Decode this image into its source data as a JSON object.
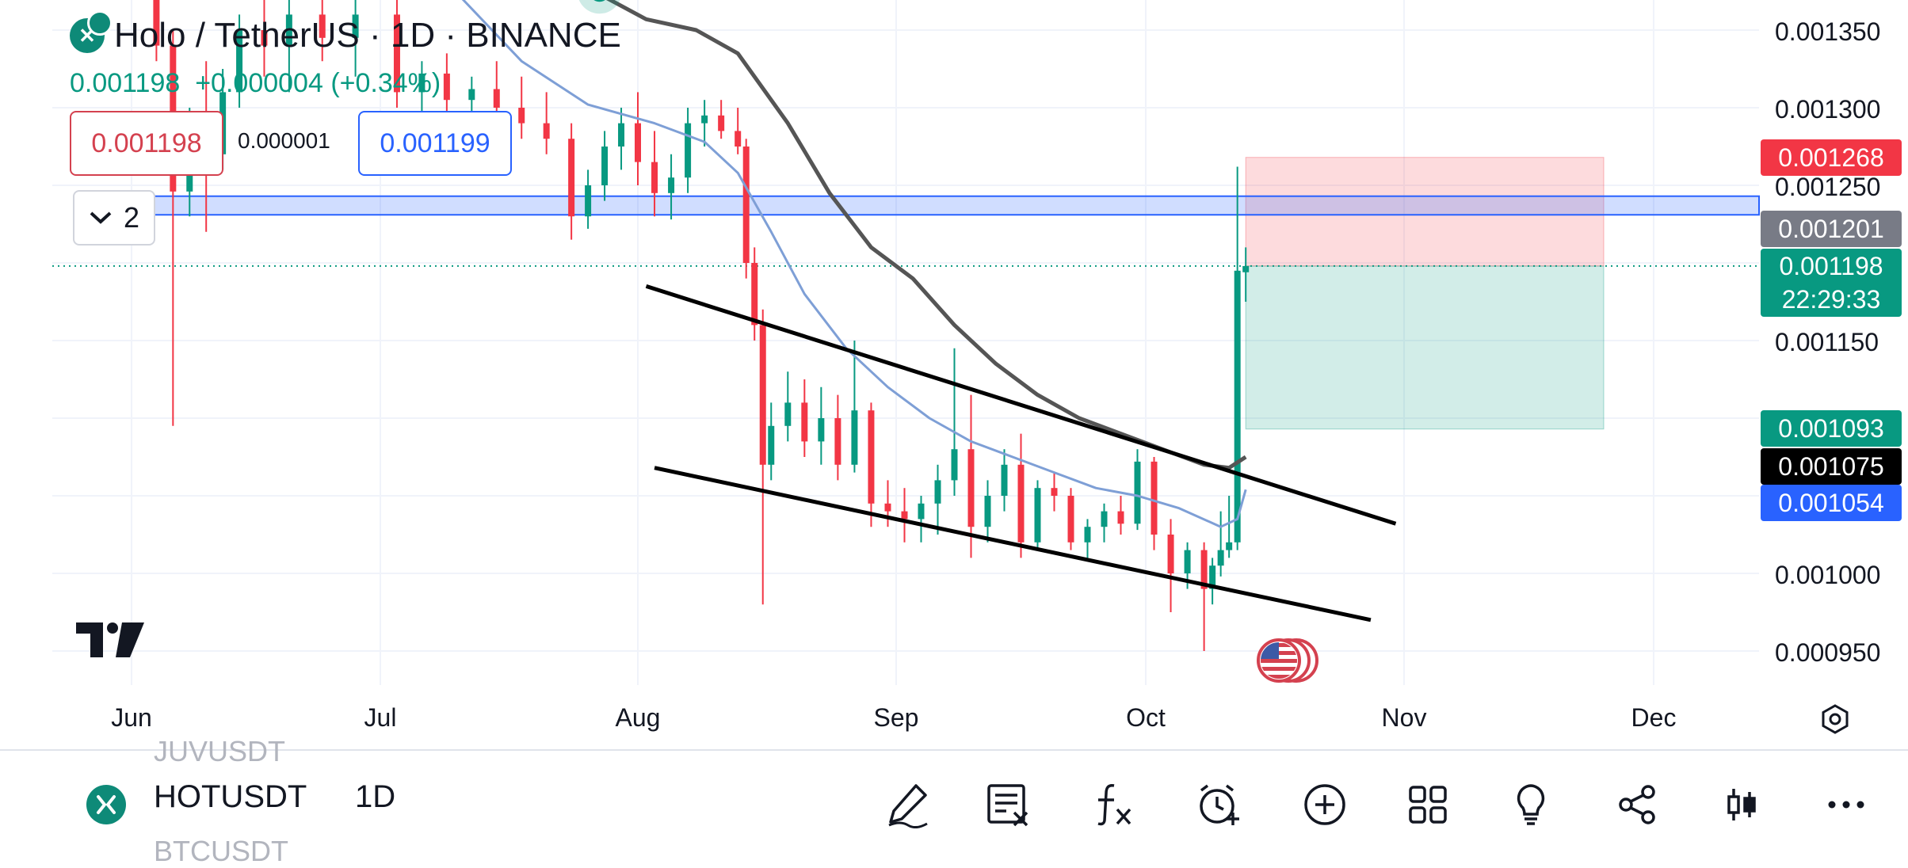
{
  "header": {
    "title": "Holo / TetherUS · 1D · BINANCE",
    "last_price": "0.001198",
    "change": "+0.000004 (+0.34%)",
    "bid": "0.001198",
    "spread": "0.000001",
    "ask": "0.001199",
    "indicator_count": "2"
  },
  "price_axis": {
    "ticks": [
      "0.001350",
      "0.001300",
      "0.001250",
      "0.001150",
      "0.001000",
      "0.000950"
    ],
    "tags": {
      "stop_loss": {
        "value": "0.001268",
        "color": "#f23645"
      },
      "horizontal_level": {
        "value": "0.001201",
        "color": "#787b86"
      },
      "last_price": {
        "value": "0.001198",
        "countdown": "22:29:33",
        "color": "#089981"
      },
      "take_profit": {
        "value": "0.001093",
        "color": "#089981"
      },
      "ma_slow": {
        "value": "0.001075",
        "color": "#000000"
      },
      "ma_fast": {
        "value": "0.001054",
        "color": "#2962ff"
      }
    }
  },
  "time_axis": {
    "labels": [
      "Jun",
      "Jul",
      "Aug",
      "Sep",
      "Oct",
      "Nov",
      "Dec"
    ]
  },
  "chart_data": {
    "type": "candlestick",
    "symbol": "HOTUSDT",
    "interval": "1D",
    "y_range": [
      0.00092,
      0.00136
    ],
    "last_price": 0.001198,
    "horizontal_zone": [
      0.001231,
      0.001243
    ],
    "long_position": {
      "entry": 0.001198,
      "stop_loss": 0.001268,
      "take_profit": 0.001093
    },
    "channel_upper": {
      "from": {
        "x": "Aug 2",
        "y": 0.001185
      },
      "to": {
        "x": "Oct 31",
        "y": 0.001032
      }
    },
    "channel_lower": {
      "from": {
        "x": "Aug 3",
        "y": 0.001068
      },
      "to": {
        "x": "Oct 28",
        "y": 0.00097
      }
    },
    "candles": [
      {
        "x": "Jun 4",
        "open": 0.001375,
        "high": 0.00139,
        "low": 0.00133,
        "close": 0.00134
      },
      {
        "x": "Jun 6",
        "open": 0.00134,
        "high": 0.00135,
        "low": 0.001095,
        "close": 0.001246
      },
      {
        "x": "Jun 8",
        "open": 0.001246,
        "high": 0.0013,
        "low": 0.00123,
        "close": 0.00129
      },
      {
        "x": "Jun 10",
        "open": 0.00129,
        "high": 0.00133,
        "low": 0.00122,
        "close": 0.00127
      },
      {
        "x": "Jun 12",
        "open": 0.00127,
        "high": 0.001325,
        "low": 0.00126,
        "close": 0.00131
      },
      {
        "x": "Jun 14",
        "open": 0.00131,
        "high": 0.00136,
        "low": 0.0013,
        "close": 0.00135
      },
      {
        "x": "Jun 17",
        "open": 0.00135,
        "high": 0.00138,
        "low": 0.00132,
        "close": 0.00134
      },
      {
        "x": "Jun 20",
        "open": 0.00134,
        "high": 0.00137,
        "low": 0.00131,
        "close": 0.00136
      },
      {
        "x": "Jun 24",
        "open": 0.00136,
        "high": 0.00138,
        "low": 0.00133,
        "close": 0.001345
      },
      {
        "x": "Jun 28",
        "open": 0.001345,
        "high": 0.001375,
        "low": 0.00132,
        "close": 0.00136
      },
      {
        "x": "Jul 3",
        "open": 0.00136,
        "high": 0.00138,
        "low": 0.0013,
        "close": 0.00131
      },
      {
        "x": "Jul 6",
        "open": 0.00131,
        "high": 0.00133,
        "low": 0.00129,
        "close": 0.001322
      },
      {
        "x": "Jul 9",
        "open": 0.001322,
        "high": 0.001335,
        "low": 0.001295,
        "close": 0.001305
      },
      {
        "x": "Jul 12",
        "open": 0.001305,
        "high": 0.00132,
        "low": 0.00129,
        "close": 0.001312
      },
      {
        "x": "Jul 15",
        "open": 0.001312,
        "high": 0.00133,
        "low": 0.00129,
        "close": 0.0013
      },
      {
        "x": "Jul 18",
        "open": 0.0013,
        "high": 0.00132,
        "low": 0.00128,
        "close": 0.00129
      },
      {
        "x": "Jul 21",
        "open": 0.00129,
        "high": 0.00131,
        "low": 0.00127,
        "close": 0.00128
      },
      {
        "x": "Jul 24",
        "open": 0.00128,
        "high": 0.00129,
        "low": 0.001215,
        "close": 0.00123
      },
      {
        "x": "Jul 26",
        "open": 0.00123,
        "high": 0.00126,
        "low": 0.001222,
        "close": 0.00125
      },
      {
        "x": "Jul 28",
        "open": 0.00125,
        "high": 0.001285,
        "low": 0.00124,
        "close": 0.001275
      },
      {
        "x": "Jul 30",
        "open": 0.001275,
        "high": 0.0013,
        "low": 0.00126,
        "close": 0.00129
      },
      {
        "x": "Aug 1",
        "open": 0.00129,
        "high": 0.00131,
        "low": 0.00125,
        "close": 0.001265
      },
      {
        "x": "Aug 3",
        "open": 0.001265,
        "high": 0.001285,
        "low": 0.00123,
        "close": 0.001245
      },
      {
        "x": "Aug 5",
        "open": 0.001245,
        "high": 0.00127,
        "low": 0.001228,
        "close": 0.001255
      },
      {
        "x": "Aug 7",
        "open": 0.001255,
        "high": 0.0013,
        "low": 0.001245,
        "close": 0.00129
      },
      {
        "x": "Aug 9",
        "open": 0.00129,
        "high": 0.001305,
        "low": 0.001275,
        "close": 0.001295
      },
      {
        "x": "Aug 11",
        "open": 0.001295,
        "high": 0.001305,
        "low": 0.00128,
        "close": 0.001285
      },
      {
        "x": "Aug 13",
        "open": 0.001285,
        "high": 0.0013,
        "low": 0.00127,
        "close": 0.001275
      },
      {
        "x": "Aug 14",
        "open": 0.001275,
        "high": 0.00128,
        "low": 0.00119,
        "close": 0.0012
      },
      {
        "x": "Aug 15",
        "open": 0.0012,
        "high": 0.00121,
        "low": 0.00115,
        "close": 0.00116
      },
      {
        "x": "Aug 16",
        "open": 0.00116,
        "high": 0.00117,
        "low": 0.00098,
        "close": 0.00107
      },
      {
        "x": "Aug 17",
        "open": 0.00107,
        "high": 0.00111,
        "low": 0.00106,
        "close": 0.001095
      },
      {
        "x": "Aug 19",
        "open": 0.001095,
        "high": 0.00113,
        "low": 0.001085,
        "close": 0.00111
      },
      {
        "x": "Aug 21",
        "open": 0.00111,
        "high": 0.001125,
        "low": 0.001075,
        "close": 0.001085
      },
      {
        "x": "Aug 23",
        "open": 0.001085,
        "high": 0.00112,
        "low": 0.00107,
        "close": 0.0011
      },
      {
        "x": "Aug 25",
        "open": 0.0011,
        "high": 0.001115,
        "low": 0.00106,
        "close": 0.00107
      },
      {
        "x": "Aug 27",
        "open": 0.00107,
        "high": 0.00115,
        "low": 0.001065,
        "close": 0.001105
      },
      {
        "x": "Aug 29",
        "open": 0.001105,
        "high": 0.00111,
        "low": 0.00103,
        "close": 0.001045
      },
      {
        "x": "Aug 31",
        "open": 0.001045,
        "high": 0.00106,
        "low": 0.00103,
        "close": 0.00104
      },
      {
        "x": "Sep 2",
        "open": 0.00104,
        "high": 0.001055,
        "low": 0.00102,
        "close": 0.001035
      },
      {
        "x": "Sep 4",
        "open": 0.001035,
        "high": 0.00105,
        "low": 0.00102,
        "close": 0.001045
      },
      {
        "x": "Sep 6",
        "open": 0.001045,
        "high": 0.00107,
        "low": 0.001025,
        "close": 0.00106
      },
      {
        "x": "Sep 8",
        "open": 0.00106,
        "high": 0.001145,
        "low": 0.00105,
        "close": 0.00108
      },
      {
        "x": "Sep 10",
        "open": 0.00108,
        "high": 0.001115,
        "low": 0.00101,
        "close": 0.00103
      },
      {
        "x": "Sep 12",
        "open": 0.00103,
        "high": 0.00106,
        "low": 0.00102,
        "close": 0.00105
      },
      {
        "x": "Sep 14",
        "open": 0.00105,
        "high": 0.00108,
        "low": 0.00104,
        "close": 0.00107
      },
      {
        "x": "Sep 16",
        "open": 0.00107,
        "high": 0.00109,
        "low": 0.00101,
        "close": 0.00102
      },
      {
        "x": "Sep 18",
        "open": 0.00102,
        "high": 0.00106,
        "low": 0.001015,
        "close": 0.001055
      },
      {
        "x": "Sep 20",
        "open": 0.001055,
        "high": 0.001065,
        "low": 0.00104,
        "close": 0.00105
      },
      {
        "x": "Sep 22",
        "open": 0.00105,
        "high": 0.001055,
        "low": 0.001015,
        "close": 0.00102
      },
      {
        "x": "Sep 24",
        "open": 0.00102,
        "high": 0.001035,
        "low": 0.00101,
        "close": 0.00103
      },
      {
        "x": "Sep 26",
        "open": 0.00103,
        "high": 0.001045,
        "low": 0.00102,
        "close": 0.00104
      },
      {
        "x": "Sep 28",
        "open": 0.00104,
        "high": 0.00105,
        "low": 0.001025,
        "close": 0.001032
      },
      {
        "x": "Sep 30",
        "open": 0.001032,
        "high": 0.00108,
        "low": 0.001028,
        "close": 0.001072
      },
      {
        "x": "Oct 2",
        "open": 0.001072,
        "high": 0.001075,
        "low": 0.001015,
        "close": 0.001025
      },
      {
        "x": "Oct 4",
        "open": 0.001025,
        "high": 0.001035,
        "low": 0.000975,
        "close": 0.001
      },
      {
        "x": "Oct 6",
        "open": 0.001,
        "high": 0.00102,
        "low": 0.00099,
        "close": 0.001015
      },
      {
        "x": "Oct 8",
        "open": 0.001015,
        "high": 0.00102,
        "low": 0.00095,
        "close": 0.00099
      },
      {
        "x": "Oct 9",
        "open": 0.00099,
        "high": 0.00101,
        "low": 0.00098,
        "close": 0.001005
      },
      {
        "x": "Oct 10",
        "open": 0.001005,
        "high": 0.00104,
        "low": 0.000998,
        "close": 0.001015
      },
      {
        "x": "Oct 11",
        "open": 0.001015,
        "high": 0.00105,
        "low": 0.00101,
        "close": 0.00102
      },
      {
        "x": "Oct 12",
        "open": 0.00102,
        "high": 0.001262,
        "low": 0.001015,
        "close": 0.001195
      },
      {
        "x": "Oct 13",
        "open": 0.001194,
        "high": 0.00121,
        "low": 0.001175,
        "close": 0.001198
      }
    ],
    "moving_averages": [
      {
        "name": "MA slow",
        "color": "#555555",
        "points": [
          {
            "x": "Jul 25",
            "y": 0.00138
          },
          {
            "x": "Aug 2",
            "y": 0.001357
          },
          {
            "x": "Aug 8",
            "y": 0.00135
          },
          {
            "x": "Aug 13",
            "y": 0.001335
          },
          {
            "x": "Aug 19",
            "y": 0.00129
          },
          {
            "x": "Aug 24",
            "y": 0.001245
          },
          {
            "x": "Aug 29",
            "y": 0.00121
          },
          {
            "x": "Sep 3",
            "y": 0.00119
          },
          {
            "x": "Sep 8",
            "y": 0.00116
          },
          {
            "x": "Sep 13",
            "y": 0.001135
          },
          {
            "x": "Sep 18",
            "y": 0.001115
          },
          {
            "x": "Sep 23",
            "y": 0.0011
          },
          {
            "x": "Sep 28",
            "y": 0.00109
          },
          {
            "x": "Oct 3",
            "y": 0.00108
          },
          {
            "x": "Oct 8",
            "y": 0.00107
          },
          {
            "x": "Oct 11",
            "y": 0.001068
          },
          {
            "x": "Oct 13",
            "y": 0.001075
          }
        ]
      },
      {
        "name": "MA fast",
        "color": "#7e9fd6",
        "points": [
          {
            "x": "Jul 10",
            "y": 0.001375
          },
          {
            "x": "Jul 18",
            "y": 0.00133
          },
          {
            "x": "Jul 26",
            "y": 0.001302
          },
          {
            "x": "Aug 3",
            "y": 0.00129
          },
          {
            "x": "Aug 9",
            "y": 0.001278
          },
          {
            "x": "Aug 13",
            "y": 0.001258
          },
          {
            "x": "Aug 17",
            "y": 0.00122
          },
          {
            "x": "Aug 21",
            "y": 0.00118
          },
          {
            "x": "Aug 26",
            "y": 0.001145
          },
          {
            "x": "Aug 31",
            "y": 0.00112
          },
          {
            "x": "Sep 5",
            "y": 0.0011
          },
          {
            "x": "Sep 10",
            "y": 0.001085
          },
          {
            "x": "Sep 15",
            "y": 0.001075
          },
          {
            "x": "Sep 20",
            "y": 0.001065
          },
          {
            "x": "Sep 25",
            "y": 0.001055
          },
          {
            "x": "Sep 30",
            "y": 0.00105
          },
          {
            "x": "Oct 5",
            "y": 0.001042
          },
          {
            "x": "Oct 10",
            "y": 0.00103
          },
          {
            "x": "Oct 12",
            "y": 0.001035
          },
          {
            "x": "Oct 13",
            "y": 0.001054
          }
        ]
      }
    ]
  },
  "bottom_bar": {
    "symbol": "HOTUSDT",
    "interval": "1D",
    "ghost_above": "JUVUSDT",
    "ghost_below": "BTCUSDT",
    "tools": [
      "pencil-icon",
      "object-tree-icon",
      "indicators-icon",
      "alert-icon",
      "add-icon",
      "layouts-icon",
      "ideas-icon",
      "share-icon",
      "chart-type-icon",
      "more-icon"
    ]
  }
}
